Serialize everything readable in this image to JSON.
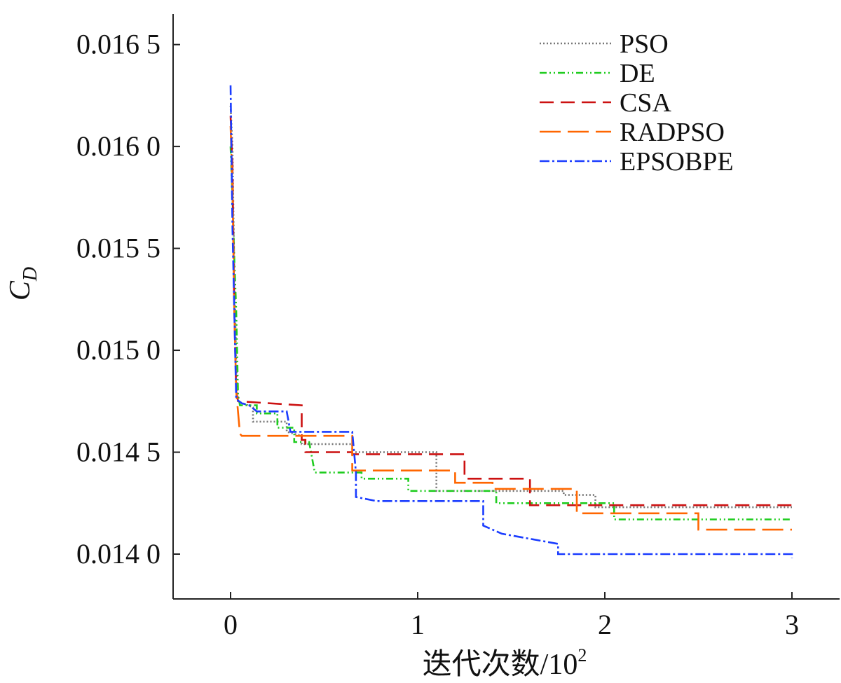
{
  "chart_data": {
    "type": "line",
    "xlabel": "迭代次数/10",
    "xlabel_superscript": "2",
    "ylabel_main": "C",
    "ylabel_subscript": "D",
    "xlim": [
      -0.3,
      3.25
    ],
    "ylim": [
      0.01378,
      0.01665
    ],
    "x_ticks": [
      0,
      1,
      2,
      3
    ],
    "x_tick_labels": [
      "0",
      "1",
      "2",
      "3"
    ],
    "y_ticks": [
      0.014,
      0.0145,
      0.015,
      0.0155,
      0.016,
      0.0165
    ],
    "y_tick_labels": [
      "0.014 0",
      "0.014 5",
      "0.015 0",
      "0.015 5",
      "0.016 0",
      "0.016 5"
    ],
    "grid": false,
    "legend_position": "top-right",
    "series": [
      {
        "name": "PSO",
        "color": "#777777",
        "dash": "2,3",
        "points": [
          [
            0,
            0.0162
          ],
          [
            0.01,
            0.016
          ],
          [
            0.02,
            0.0154
          ],
          [
            0.03,
            0.01495
          ],
          [
            0.04,
            0.01475
          ],
          [
            0.12,
            0.01472
          ],
          [
            0.12,
            0.01465
          ],
          [
            0.3,
            0.01465
          ],
          [
            0.3,
            0.0146
          ],
          [
            0.38,
            0.01458
          ],
          [
            0.38,
            0.01454
          ],
          [
            0.65,
            0.01454
          ],
          [
            0.65,
            0.0145
          ],
          [
            1.1,
            0.0145
          ],
          [
            1.1,
            0.01431
          ],
          [
            1.78,
            0.01431
          ],
          [
            1.78,
            0.01429
          ],
          [
            1.95,
            0.01429
          ],
          [
            1.95,
            0.01423
          ],
          [
            3.0,
            0.01423
          ]
        ]
      },
      {
        "name": "DE",
        "color": "#1fcc1f",
        "dash": "10,4,2,4,2,4",
        "points": [
          [
            0,
            0.016
          ],
          [
            0.01,
            0.01575
          ],
          [
            0.02,
            0.01545
          ],
          [
            0.03,
            0.0152
          ],
          [
            0.04,
            0.01478
          ],
          [
            0.05,
            0.01473
          ],
          [
            0.14,
            0.01473
          ],
          [
            0.14,
            0.01469
          ],
          [
            0.25,
            0.01469
          ],
          [
            0.25,
            0.01462
          ],
          [
            0.34,
            0.01462
          ],
          [
            0.34,
            0.01455
          ],
          [
            0.42,
            0.01455
          ],
          [
            0.45,
            0.0144
          ],
          [
            0.7,
            0.0144
          ],
          [
            0.7,
            0.01437
          ],
          [
            0.95,
            0.01437
          ],
          [
            0.95,
            0.01431
          ],
          [
            1.42,
            0.01431
          ],
          [
            1.42,
            0.01425
          ],
          [
            2.05,
            0.01425
          ],
          [
            2.05,
            0.01417
          ],
          [
            3.0,
            0.01417
          ]
        ]
      },
      {
        "name": "CSA",
        "color": "#cc1111",
        "dash": "20,10",
        "points": [
          [
            0,
            0.01615
          ],
          [
            0.01,
            0.0159
          ],
          [
            0.02,
            0.0152
          ],
          [
            0.03,
            0.0148
          ],
          [
            0.04,
            0.01475
          ],
          [
            0.38,
            0.01473
          ],
          [
            0.38,
            0.01456
          ],
          [
            0.4,
            0.01456
          ],
          [
            0.4,
            0.0145
          ],
          [
            0.65,
            0.0145
          ],
          [
            0.65,
            0.01449
          ],
          [
            1.25,
            0.01449
          ],
          [
            1.25,
            0.01437
          ],
          [
            1.6,
            0.01437
          ],
          [
            1.6,
            0.01424
          ],
          [
            3.0,
            0.01424
          ]
        ]
      },
      {
        "name": "RADPSO",
        "color": "#ff6600",
        "dash": "30,10",
        "points": [
          [
            0,
            0.0161
          ],
          [
            0.01,
            0.0158
          ],
          [
            0.02,
            0.0152
          ],
          [
            0.03,
            0.0148
          ],
          [
            0.05,
            0.01459
          ],
          [
            0.06,
            0.01458
          ],
          [
            0.65,
            0.01458
          ],
          [
            0.65,
            0.01441
          ],
          [
            1.2,
            0.01441
          ],
          [
            1.2,
            0.01435
          ],
          [
            1.4,
            0.01435
          ],
          [
            1.4,
            0.01432
          ],
          [
            1.85,
            0.01432
          ],
          [
            1.85,
            0.0142
          ],
          [
            2.5,
            0.0142
          ],
          [
            2.5,
            0.01412
          ],
          [
            3.0,
            0.01412
          ]
        ]
      },
      {
        "name": "EPSOBPE",
        "color": "#1a3cff",
        "dash": "14,4,3,4",
        "points": [
          [
            0,
            0.0163
          ],
          [
            0.01,
            0.0156
          ],
          [
            0.02,
            0.0152
          ],
          [
            0.03,
            0.01476
          ],
          [
            0.06,
            0.01474
          ],
          [
            0.1,
            0.01473
          ],
          [
            0.14,
            0.0147
          ],
          [
            0.3,
            0.0147
          ],
          [
            0.32,
            0.0146
          ],
          [
            0.65,
            0.0146
          ],
          [
            0.67,
            0.0144
          ],
          [
            0.67,
            0.01428
          ],
          [
            0.78,
            0.01426
          ],
          [
            1.35,
            0.01426
          ],
          [
            1.35,
            0.01414
          ],
          [
            1.45,
            0.0141
          ],
          [
            1.75,
            0.01405
          ],
          [
            1.75,
            0.014
          ],
          [
            3.0,
            0.014
          ],
          [
            3.0,
            0.01398
          ]
        ]
      }
    ]
  }
}
